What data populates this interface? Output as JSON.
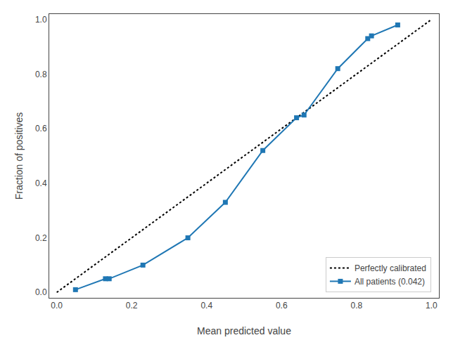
{
  "chart_data": {
    "type": "line",
    "xlabel": "Mean predicted value",
    "ylabel": "Fraction of positives",
    "series": [
      {
        "name": "Perfectly calibrated",
        "color": "black",
        "line_style": "dotted",
        "x": [
          0.0,
          1.0
        ],
        "values": [
          0.0,
          1.0
        ]
      },
      {
        "name": "All patients (0.042)",
        "color": "#1f77b4",
        "line_style": "solid",
        "marker": "square",
        "x": [
          0.05,
          0.13,
          0.14,
          0.23,
          0.35,
          0.45,
          0.55,
          0.64,
          0.66,
          0.75,
          0.83,
          0.84,
          0.91
        ],
        "values": [
          0.01,
          0.05,
          0.05,
          0.1,
          0.2,
          0.33,
          0.52,
          0.64,
          0.65,
          0.82,
          0.93,
          0.94,
          0.98
        ]
      }
    ],
    "xlim": [
      -0.02,
      1.02
    ],
    "ylim": [
      -0.02,
      1.02
    ],
    "xticks": [
      {
        "value": 0.0,
        "label": "0.0"
      },
      0.2,
      0.4,
      0.6,
      0.8,
      {
        "value": 1.0,
        "label": "1.0"
      }
    ],
    "yticks": [
      {
        "value": 0.0,
        "label": "0.0"
      },
      0.2,
      0.4,
      0.6,
      0.8,
      {
        "value": 1.0,
        "label": "1.0"
      }
    ],
    "legend": "lower right",
    "grid": false
  }
}
